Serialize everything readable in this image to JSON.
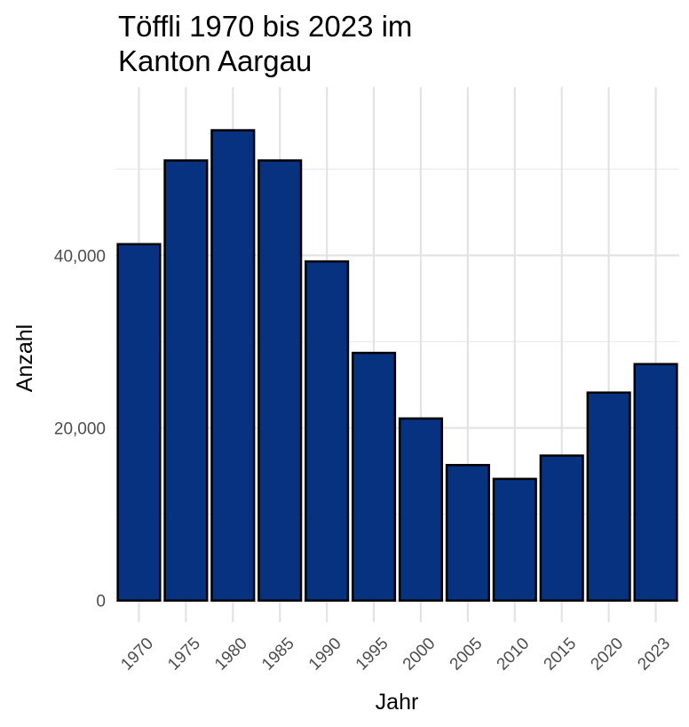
{
  "chart_data": {
    "type": "bar",
    "title_lines": [
      "Töffli 1970 bis 2023 im",
      "Kanton Aargau"
    ],
    "xlabel": "Jahr",
    "ylabel": "Anzahl",
    "categories": [
      "1970",
      "1975",
      "1980",
      "1985",
      "1990",
      "1995",
      "2000",
      "2005",
      "2010",
      "2015",
      "2020",
      "2023"
    ],
    "values": [
      41300,
      51000,
      54500,
      51000,
      39300,
      28700,
      21100,
      15700,
      14100,
      16800,
      24100,
      27400
    ],
    "ylim": [
      -2500,
      59500
    ],
    "y_ticks": [
      0,
      20000,
      40000
    ],
    "y_tick_labels": [
      "0",
      "20,000",
      "40,000"
    ],
    "grid": true,
    "bar_color": "#06327f",
    "bar_outline": "#000000"
  }
}
